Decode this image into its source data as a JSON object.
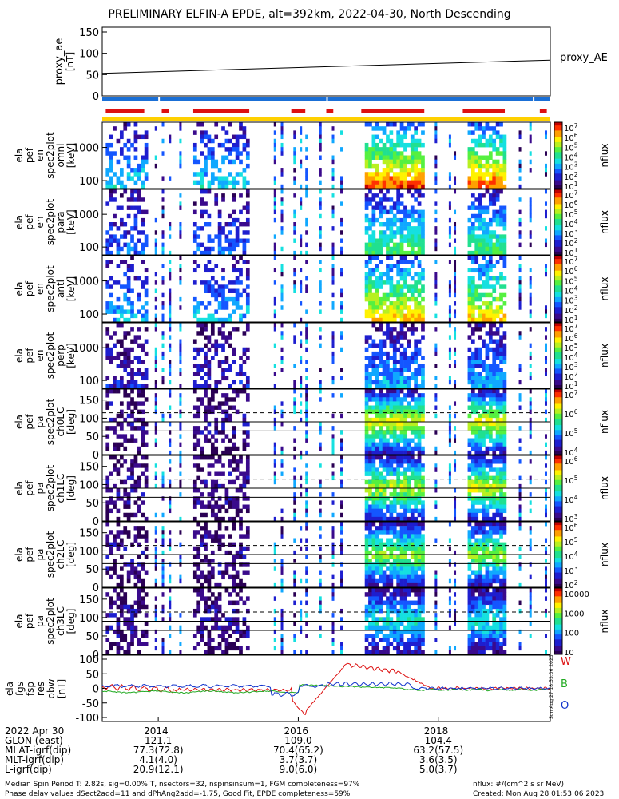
{
  "title": "PRELIMINARY ELFIN-A EPDE, alt=392km, 2022-04-30, North Descending",
  "colors": {
    "proxy_bar": "#1a6fd6",
    "sci_zone": "#dd1111",
    "flag_bar": "#ffd000",
    "comp_W": "#dd1111",
    "comp_B": "#22aa22",
    "comp_O": "#1133cc"
  },
  "chart_data": [
    {
      "type": "line",
      "ylabel": "proxy_ae [nT]",
      "ylim": [
        0,
        150
      ],
      "yticks": [
        "150",
        "100",
        "50",
        "0"
      ],
      "series": [
        {
          "name": "proxy_AE",
          "x": [
            2013.2,
            2019.6
          ],
          "y": [
            53,
            84
          ]
        }
      ]
    },
    {
      "type": "heatmap",
      "ylabel": "ela pef en spec2plot omni [keV]",
      "yticks": [
        "1000",
        "100"
      ],
      "colorbar_label": "nflux",
      "colorbar_ticks": [
        "10^7",
        "10^6",
        "10^5",
        "10^4",
        "10^3",
        "10^2",
        "10^1"
      ]
    },
    {
      "type": "heatmap",
      "ylabel": "ela pef en spec2plot para [keV]",
      "yticks": [
        "1000",
        "100"
      ],
      "colorbar_label": "nflux",
      "colorbar_ticks": [
        "10^7",
        "10^6",
        "10^5",
        "10^4",
        "10^3",
        "10^2",
        "10^1"
      ]
    },
    {
      "type": "heatmap",
      "ylabel": "ela pef en spec2plot anti [keV]",
      "yticks": [
        "1000",
        "100"
      ],
      "colorbar_label": "nflux",
      "colorbar_ticks": [
        "10^7",
        "10^6",
        "10^5",
        "10^4",
        "10^3",
        "10^2",
        "10^1"
      ]
    },
    {
      "type": "heatmap",
      "ylabel": "ela pef en spec2plot perp [keV]",
      "yticks": [
        "1000",
        "100"
      ],
      "colorbar_label": "nflux",
      "colorbar_ticks": [
        "10^7",
        "10^6",
        "10^5",
        "10^4",
        "10^3",
        "10^2",
        "10^1"
      ]
    },
    {
      "type": "heatmap",
      "ylabel": "ela pef pa spec2plot ch0LC [deg]",
      "yticks": [
        "150",
        "100",
        "50",
        "0"
      ],
      "colorbar_label": "nflux",
      "colorbar_ticks": [
        "10^7",
        "10^6",
        "10^5",
        "10^4"
      ]
    },
    {
      "type": "heatmap",
      "ylabel": "ela pef pa spec2plot ch1LC [deg]",
      "yticks": [
        "150",
        "100",
        "50",
        "0"
      ],
      "colorbar_label": "nflux",
      "colorbar_ticks": [
        "10^6",
        "10^5",
        "10^4",
        "10^3"
      ]
    },
    {
      "type": "heatmap",
      "ylabel": "ela pef pa spec2plot ch2LC [deg]",
      "yticks": [
        "150",
        "100",
        "50",
        "0"
      ],
      "colorbar_label": "nflux",
      "colorbar_ticks": [
        "10^6",
        "10^5",
        "10^4",
        "10^3",
        "10^2"
      ]
    },
    {
      "type": "heatmap",
      "ylabel": "ela pef pa spec2plot ch3LC [deg]",
      "yticks": [
        "150",
        "100",
        "50",
        "0"
      ],
      "colorbar_label": "nflux",
      "colorbar_ticks": [
        "10000",
        "1000",
        "100",
        "10"
      ]
    },
    {
      "type": "line",
      "ylabel": "ela fgs fsp res obw [nT]",
      "ylim": [
        -100,
        100
      ],
      "yticks": [
        "100",
        "50",
        "0",
        "-50",
        "-100"
      ],
      "legend": [
        "W",
        "B",
        "O"
      ],
      "xticks": [
        "2014",
        "2016",
        "2018"
      ]
    }
  ],
  "ephemeris": {
    "labels": [
      "2022 Apr 30",
      "GLON (east)",
      "MLAT-igrf(dip)",
      "MLT-igrf(dip)",
      "L-igrf(dip)"
    ],
    "columns": [
      {
        "tick": "2014",
        "values": [
          "121.1",
          "77.3(72.8)",
          "4.1(4.0)",
          "20.9(12.1)"
        ]
      },
      {
        "tick": "2016",
        "values": [
          "109.0",
          "70.4(65.2)",
          "3.7(3.7)",
          "9.0(6.0)"
        ]
      },
      {
        "tick": "2018",
        "values": [
          "104.4",
          "63.2(57.5)",
          "3.6(3.5)",
          "5.0(3.7)"
        ]
      }
    ]
  },
  "footer": {
    "line1": "Median Spin Period T: 2.82s, sig=0.00% T, nsectors=32, nspinsinsum=1, FGM completeness=97%",
    "line2": "Phase delay values dSect2add=11 and dPhAng2add=-1.75, Good Fit, EPDE completeness=59%",
    "units": "nflux: #/(cm^2 s sr MeV)",
    "created": "Created: Mon Aug 28 01:53:06 2023",
    "stamp": "Sun Aug 27 18:53:06 2023"
  }
}
